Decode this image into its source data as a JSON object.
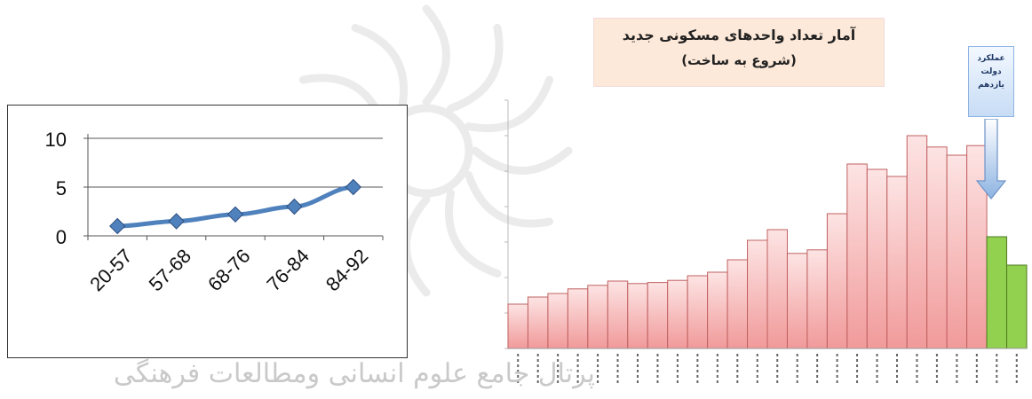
{
  "chart_data": [
    {
      "type": "line",
      "categories": [
        "20-57",
        "57-68",
        "68-76",
        "76-84",
        "84-92"
      ],
      "values": [
        1,
        1.5,
        2.2,
        3,
        5
      ],
      "ylim": [
        0,
        10
      ],
      "yticks": [
        "0",
        "5",
        "10"
      ],
      "grid": true,
      "color": "#4f81bd"
    },
    {
      "type": "bar",
      "title": "آمار تعداد واحدهای مسکونی جدید",
      "subtitle": "(شروع به ساخت)",
      "annotation": "عملکرد دولت یازدهم",
      "values": [
        125000,
        145000,
        155000,
        168000,
        178000,
        190000,
        183000,
        186000,
        192000,
        205000,
        215000,
        250000,
        305000,
        335000,
        268000,
        278000,
        380000,
        520000,
        505000,
        485000,
        600000,
        568000,
        545000,
        572000,
        315000,
        235000
      ],
      "highlight_from_index": 24,
      "ylim": [
        0,
        700000
      ],
      "colors": {
        "bars": "#f8c6c6",
        "bar_stroke": "#c06060",
        "highlight": "#92d050",
        "highlight_stroke": "#4f7a20"
      }
    }
  ],
  "watermark_text": "پرتال جامع علوم انسانی ومطالعات فرهنگی"
}
